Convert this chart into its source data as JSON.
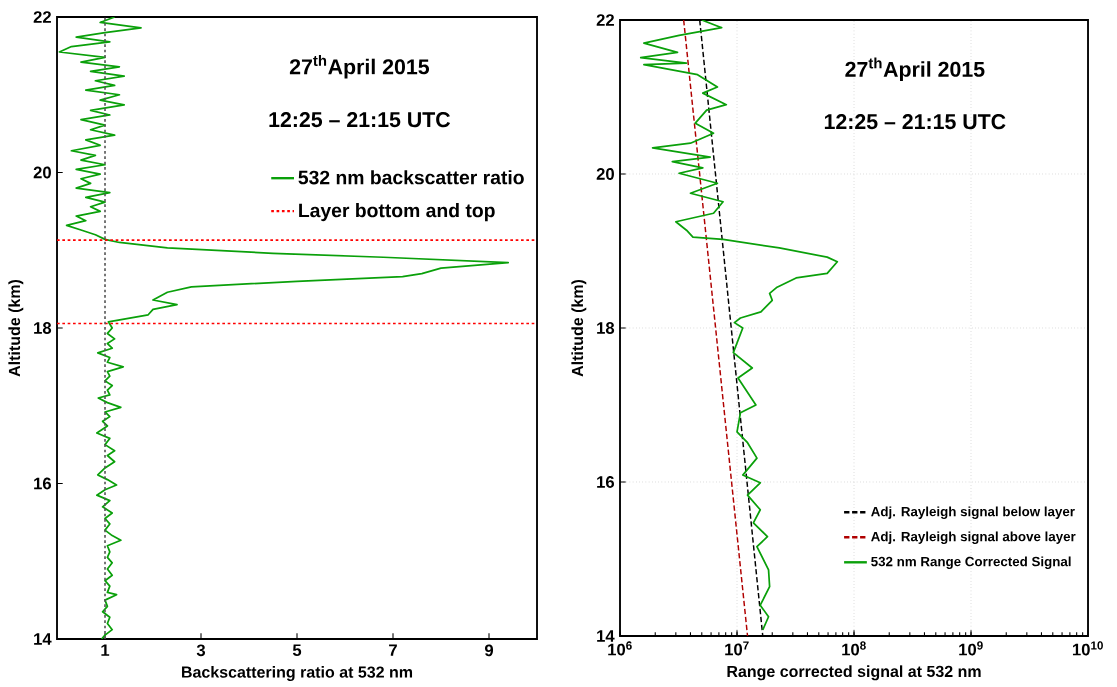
{
  "chart_data": [
    {
      "type": "line",
      "title": "27$^{th}$April 2015",
      "subtitle": "12:25 – 21:15 UTC",
      "xlabel": "Backscattering ratio at 532 nm",
      "ylabel": "Altitude (km)",
      "xlim": [
        0,
        10
      ],
      "xticks": [
        1,
        3,
        5,
        7,
        9
      ],
      "ylim": [
        14,
        22
      ],
      "yticks": [
        14,
        16,
        18,
        20,
        22
      ],
      "grid": false,
      "legend": "right",
      "series": [
        {
          "name": "532 nm backscatter ratio",
          "color": "#0aa00a",
          "line_style": "solid",
          "x": [
            1.2,
            0.9,
            1.75,
            1.0,
            0.4,
            1.1,
            0.3,
            0.05,
            1.0,
            0.5,
            1.3,
            0.7,
            1.4,
            0.8,
            1.2,
            0.6,
            1.3,
            0.9,
            1.4,
            0.7,
            1.1,
            0.5,
            1.0,
            0.7,
            1.2,
            0.6,
            0.9,
            0.3,
            0.8,
            0.5,
            1.0,
            0.4,
            0.9,
            0.5,
            0.7,
            0.4,
            1.1,
            0.6,
            1.0,
            0.7,
            0.9,
            0.4,
            0.6,
            0.2,
            0.5,
            0.8,
            1.0,
            1.3,
            2.3,
            4.5,
            6.8,
            9.4,
            8.0,
            7.6,
            7.2,
            5.0,
            2.8,
            2.3,
            2.0,
            2.5,
            2.0,
            1.9,
            1.07,
            1.15,
            1.05,
            1.2,
            1.05,
            1.15,
            0.85,
            1.1,
            1.05,
            1.38,
            1.05,
            1.1,
            1.0,
            1.15,
            1.05,
            1.1,
            0.86,
            1.05,
            1.33,
            1.0,
            1.1,
            0.95,
            1.05,
            0.83,
            1.1,
            1.0,
            1.2,
            1.05,
            1.2,
            1.0,
            0.85,
            1.05,
            1.24,
            1.0,
            0.83,
            1.1,
            0.95,
            1.15,
            1.0,
            1.1,
            1.0,
            1.15,
            1.33,
            1.05,
            1.1,
            1.05,
            1.15,
            1.05,
            1.15,
            1.0,
            1.1,
            1.05,
            1.24,
            1.0,
            1.05,
            0.95,
            1.1,
            1.05,
            1.15,
            1.0,
            0.93
          ],
          "values": [
            22.0,
            21.93,
            21.86,
            21.8,
            21.74,
            21.68,
            21.62,
            21.55,
            21.48,
            21.42,
            21.36,
            21.3,
            21.24,
            21.18,
            21.12,
            21.06,
            21.0,
            20.93,
            20.87,
            20.8,
            20.74,
            20.68,
            20.61,
            20.55,
            20.48,
            20.42,
            20.35,
            20.28,
            20.22,
            20.16,
            20.1,
            20.04,
            19.98,
            19.92,
            19.86,
            19.8,
            19.74,
            19.68,
            19.62,
            19.56,
            19.5,
            19.44,
            19.38,
            19.32,
            19.26,
            19.2,
            19.14,
            19.1,
            19.03,
            18.96,
            18.91,
            18.84,
            18.77,
            18.7,
            18.66,
            18.6,
            18.53,
            18.46,
            18.36,
            18.3,
            18.24,
            18.17,
            18.08,
            18.0,
            17.93,
            17.86,
            17.8,
            17.74,
            17.68,
            17.62,
            17.56,
            17.5,
            17.44,
            17.38,
            17.32,
            17.26,
            17.2,
            17.14,
            17.1,
            17.04,
            16.98,
            16.92,
            16.86,
            16.8,
            16.74,
            16.65,
            16.58,
            16.5,
            16.42,
            16.36,
            16.28,
            16.2,
            16.11,
            16.05,
            15.98,
            15.92,
            15.85,
            15.78,
            15.7,
            15.62,
            15.55,
            15.48,
            15.4,
            15.33,
            15.27,
            15.2,
            15.12,
            15.05,
            14.98,
            14.9,
            14.82,
            14.75,
            14.68,
            14.6,
            14.57,
            14.5,
            14.42,
            14.35,
            14.28,
            14.2,
            14.12,
            14.05,
            14.0
          ]
        }
      ],
      "ref_lines": [
        {
          "axis": "y",
          "value": 19.13,
          "label": "Layer bottom and top",
          "color": "#ff0000",
          "line_style": "dotted"
        },
        {
          "axis": "y",
          "value": 18.06,
          "color": "#ff0000",
          "line_style": "dotted"
        },
        {
          "axis": "x",
          "value": 1,
          "color": "#555555",
          "line_style": "dotted"
        }
      ]
    },
    {
      "type": "line",
      "title": "27$^{th}$April 2015",
      "subtitle": "12:25 – 21:15 UTC",
      "xlabel": "Range corrected signal at 532 nm",
      "ylabel": "Altitude (km)",
      "log": "x",
      "xlim": [
        1000000,
        10000000000
      ],
      "xticks": [
        {
          "value": 1000000,
          "label": "10$^{6}$"
        },
        {
          "value": 10000000,
          "label": "10$^{7}$"
        },
        {
          "value": 100000000,
          "label": "10$^{8}$"
        },
        {
          "value": 1000000000,
          "label": "10$^{9}$"
        },
        {
          "value": 10000000000,
          "label": "10$^{10}$"
        }
      ],
      "ylim": [
        14,
        22
      ],
      "yticks": [
        14,
        16,
        18,
        20,
        22
      ],
      "grid": true,
      "legend": "bottom right",
      "series": [
        {
          "name": "Adj. Rayleigh signal below layer",
          "color": "#000000",
          "line_style": "dashed",
          "x": [
            4800000.0,
            16600000.0
          ],
          "values": [
            22,
            14
          ]
        },
        {
          "name": "Adj. Rayleigh signal above layer",
          "color": "#b00000",
          "line_style": "dashed",
          "x": [
            3500000.0,
            12300000.0
          ],
          "values": [
            22,
            14
          ]
        },
        {
          "name": "532 nm Range Corrected Signal",
          "color": "#0aa00a",
          "line_style": "solid",
          "x": [
            5000000.0,
            7400000.0,
            3200000.0,
            1600000.0,
            3100000.0,
            1500000.0,
            3700000.0,
            1600000.0,
            4600000.0,
            6800000.0,
            5100000.0,
            8100000.0,
            5500000.0,
            4400000.0,
            6300000.0,
            4000000.0,
            1900000.0,
            5900000.0,
            2800000.0,
            5100000.0,
            3200000.0,
            6800000.0,
            4000000.0,
            7600000.0,
            6300000.0,
            3000000.0,
            3700000.0,
            4200000.0,
            7600000.0,
            23000000.0,
            59000000.0,
            72000000.0,
            59000000.0,
            32000000.0,
            22000000.0,
            19000000.0,
            20000000.0,
            16000000.0,
            10700000.0,
            9500000.0,
            11200000.0,
            9300000.0,
            13500000.0,
            10200000.0,
            14500000.0,
            10700000.0,
            10000000.0,
            12300000.0,
            14800000.0,
            11200000.0,
            15800000.0,
            12300000.0,
            15800000.0,
            13800000.0,
            18200000.0,
            14800000.0,
            18600000.0,
            19000000.0,
            15800000.0,
            18600000.0,
            16600000.0
          ],
          "values": [
            22.0,
            21.9,
            21.8,
            21.7,
            21.58,
            21.51,
            21.44,
            21.42,
            21.29,
            21.13,
            21.05,
            20.9,
            20.83,
            20.66,
            20.53,
            20.4,
            20.34,
            20.22,
            20.16,
            20.08,
            20.01,
            19.88,
            19.75,
            19.64,
            19.49,
            19.38,
            19.27,
            19.18,
            19.15,
            19.04,
            18.92,
            18.86,
            18.71,
            18.65,
            18.53,
            18.45,
            18.36,
            18.21,
            18.13,
            18.07,
            18.0,
            17.68,
            17.48,
            17.35,
            17.0,
            16.9,
            16.65,
            16.51,
            16.31,
            16.09,
            15.99,
            15.83,
            15.64,
            15.47,
            15.29,
            15.16,
            14.86,
            14.64,
            14.4,
            14.25,
            14.08
          ]
        }
      ]
    }
  ]
}
